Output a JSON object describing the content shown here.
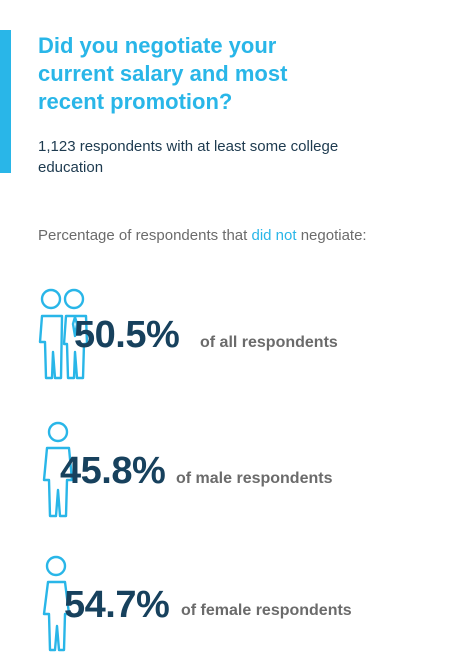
{
  "title": "Did you negotiate your current salary and most recent promotion?",
  "subtitle": "1,123 respondents with at least some college education",
  "intro": {
    "before": "Percentage of respondents that ",
    "highlight": "did not",
    "after": " negotiate:"
  },
  "colors": {
    "accent": "#29b6e8",
    "stat": "#17415d",
    "muted": "#6b6b6b"
  },
  "chart_data": {
    "type": "table",
    "categories": [
      "all respondents",
      "male respondents",
      "female respondents"
    ],
    "values": [
      50.5,
      45.8,
      54.7
    ],
    "unit": "%",
    "stats": [
      {
        "value_label": "50.5%",
        "description": "of all respondents",
        "icon": "couple-icon"
      },
      {
        "value_label": "45.8%",
        "description": "of male respondents",
        "icon": "man-icon"
      },
      {
        "value_label": "54.7%",
        "description": "of female respondents",
        "icon": "woman-icon"
      }
    ]
  }
}
